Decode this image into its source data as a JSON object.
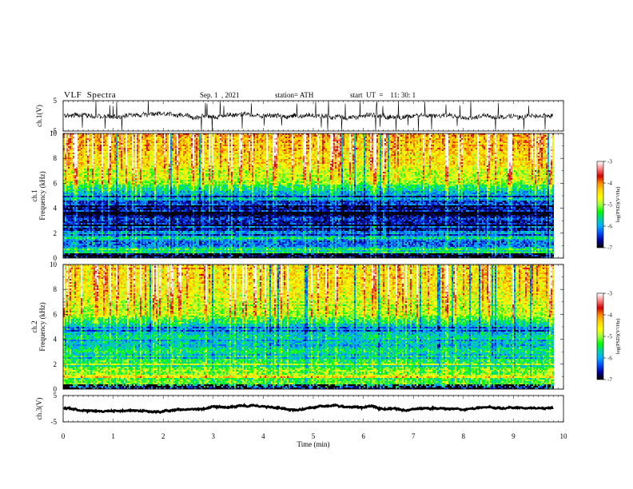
{
  "header": {
    "title": "VLF  Spectra",
    "date": "Sep. 1  , 2021",
    "station": "station= ATH",
    "start_ut": "start  UT  =    11: 30: 1"
  },
  "colors": {
    "colormap": [
      "#ffffff",
      "#ff7f7f",
      "#d40000",
      "#ff8c00",
      "#ffd700",
      "#ffff00",
      "#a0ff40",
      "#00ff00",
      "#00d2a0",
      "#00b0ff",
      "#0050ff",
      "#0000a0",
      "#000000"
    ],
    "trace": "#000000"
  },
  "chart_data": [
    {
      "type": "line",
      "name": "ch1-waveform",
      "ylabel": "ch.1(V)",
      "yticks": [
        "5",
        "-5"
      ],
      "ylim": [
        -5,
        5
      ],
      "xlim": [
        0,
        10
      ],
      "baseline": 0,
      "noise_amplitude": 1.5,
      "data_end_min": 9.8
    },
    {
      "type": "heatmap",
      "name": "ch1-spectrogram",
      "ylabel": "ch.1\nFrequency  (kHz)",
      "yticks": [
        "0",
        "2",
        "4",
        "6",
        "8",
        "10"
      ],
      "ylim": [
        0,
        10
      ],
      "xlim": [
        0,
        10
      ],
      "data_end_min": 9.8,
      "colorbar": {
        "label": "log(PSD)(V²/Hz)",
        "ticks": [
          "-3",
          "-4",
          "-5",
          "-6",
          "-7"
        ],
        "range": [
          -7,
          -3
        ]
      },
      "frequency_profile_logpsd": [
        {
          "f": 0.0,
          "v": -6.8
        },
        {
          "f": 0.5,
          "v": -5.6
        },
        {
          "f": 1.0,
          "v": -5.9
        },
        {
          "f": 1.5,
          "v": -6.0
        },
        {
          "f": 2.0,
          "v": -6.2
        },
        {
          "f": 2.5,
          "v": -6.7
        },
        {
          "f": 3.0,
          "v": -6.9
        },
        {
          "f": 4.0,
          "v": -6.9
        },
        {
          "f": 5.0,
          "v": -6.3
        },
        {
          "f": 6.0,
          "v": -5.2
        },
        {
          "f": 7.0,
          "v": -4.9
        },
        {
          "f": 8.0,
          "v": -4.7
        },
        {
          "f": 9.0,
          "v": -4.5
        },
        {
          "f": 10.0,
          "v": -4.4
        }
      ]
    },
    {
      "type": "heatmap",
      "name": "ch2-spectrogram",
      "ylabel": "ch.2\nFrequency  (kHz)",
      "yticks": [
        "0",
        "2",
        "4",
        "6",
        "8",
        "10"
      ],
      "ylim": [
        0,
        10
      ],
      "xlim": [
        0,
        10
      ],
      "data_end_min": 9.8,
      "colorbar": {
        "label": "log(PSD)(V²/Hz)",
        "ticks": [
          "-3",
          "-4",
          "-5",
          "-6",
          "-7"
        ],
        "range": [
          -7,
          -3
        ]
      },
      "frequency_profile_logpsd": [
        {
          "f": 0.0,
          "v": -6.0
        },
        {
          "f": 0.5,
          "v": -5.2
        },
        {
          "f": 1.0,
          "v": -4.8
        },
        {
          "f": 1.5,
          "v": -5.5
        },
        {
          "f": 2.0,
          "v": -5.3
        },
        {
          "f": 2.5,
          "v": -5.6
        },
        {
          "f": 3.0,
          "v": -5.5
        },
        {
          "f": 4.0,
          "v": -6.1
        },
        {
          "f": 5.0,
          "v": -6.0
        },
        {
          "f": 6.0,
          "v": -5.1
        },
        {
          "f": 7.0,
          "v": -4.9
        },
        {
          "f": 8.0,
          "v": -4.8
        },
        {
          "f": 9.0,
          "v": -4.7
        },
        {
          "f": 10.0,
          "v": -4.6
        }
      ]
    },
    {
      "type": "line",
      "name": "ch3-waveform",
      "ylabel": "ch.3(V)",
      "yticks": [
        "5",
        "-5"
      ],
      "ylim": [
        -5,
        5
      ],
      "xlim": [
        0,
        10
      ],
      "baseline": 0,
      "noise_amplitude": 0.3,
      "data_end_min": 9.8
    }
  ],
  "xaxis": {
    "label": "Time  (min)",
    "ticks": [
      "0",
      "1",
      "2",
      "3",
      "4",
      "5",
      "6",
      "7",
      "8",
      "9",
      "10"
    ]
  }
}
